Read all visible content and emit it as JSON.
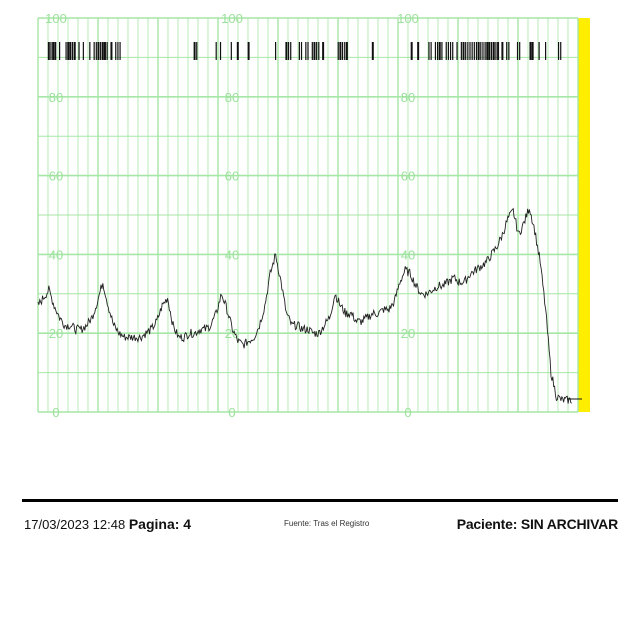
{
  "chart_data": {
    "type": "line",
    "title": "",
    "xlabel": "",
    "ylabel": "",
    "panels": 3,
    "y_tick_labels": [
      "100",
      "80",
      "60",
      "40",
      "20",
      "0"
    ],
    "y_ticks": [
      100,
      80,
      60,
      40,
      20,
      0
    ],
    "ylim": [
      0,
      100
    ],
    "xlim": [
      0,
      1
    ],
    "grid": true,
    "grid_color": "#a6e6a6",
    "line_color": "#222222",
    "highlight_color": "#ffee00",
    "series": [
      {
        "values_x": [
          0.0,
          0.01,
          0.02,
          0.03,
          0.04,
          0.05,
          0.06,
          0.07,
          0.08,
          0.09,
          0.1,
          0.11,
          0.12,
          0.13,
          0.14,
          0.15,
          0.16,
          0.17,
          0.18,
          0.19,
          0.2,
          0.21,
          0.22,
          0.23,
          0.24,
          0.25,
          0.26,
          0.27,
          0.28,
          0.29,
          0.3,
          0.31,
          0.32,
          0.33,
          0.34,
          0.35,
          0.36,
          0.37,
          0.38,
          0.39,
          0.4,
          0.41,
          0.42,
          0.43,
          0.44,
          0.45,
          0.46,
          0.47,
          0.48,
          0.49,
          0.5,
          0.51,
          0.52,
          0.53,
          0.54,
          0.55,
          0.56,
          0.57,
          0.58,
          0.59,
          0.6,
          0.61,
          0.62,
          0.63,
          0.64,
          0.65,
          0.66,
          0.67,
          0.68,
          0.69,
          0.7,
          0.71,
          0.72,
          0.73,
          0.74,
          0.75,
          0.76,
          0.77,
          0.78,
          0.79,
          0.8,
          0.81,
          0.82,
          0.83,
          0.84,
          0.85,
          0.86,
          0.87,
          0.88,
          0.89,
          0.9,
          0.91,
          0.92,
          0.93,
          0.94,
          0.95,
          0.96,
          0.97,
          0.98
        ],
        "values": [
          27,
          29,
          31,
          27,
          24,
          22,
          22,
          21,
          21,
          22,
          24,
          28,
          33,
          27,
          22,
          20,
          19,
          19,
          19,
          19,
          20,
          21,
          23,
          27,
          29,
          22,
          19,
          19,
          20,
          20,
          21,
          21,
          22,
          25,
          30,
          26,
          21,
          18,
          17,
          18,
          19,
          22,
          27,
          35,
          40,
          33,
          25,
          22,
          22,
          21,
          21,
          20,
          20,
          22,
          24,
          30,
          27,
          25,
          25,
          23,
          23,
          24,
          25,
          25,
          26,
          26,
          28,
          33,
          36,
          35,
          32,
          30,
          30,
          31,
          32,
          32,
          33,
          34,
          33,
          33,
          35,
          36,
          37,
          38,
          40,
          42,
          45,
          49,
          51,
          45,
          48,
          52,
          46,
          38,
          26,
          10,
          4,
          3,
          3
        ]
      }
    ],
    "acceleration_ticks_note": "event markers row along top"
  },
  "footer": {
    "patient": "Paciente: SIN ARCHIVAR",
    "date": "17/03/2023 12:48",
    "page_label": "Pagina: 4",
    "center_note": "Fuente: Tras el Registro"
  }
}
